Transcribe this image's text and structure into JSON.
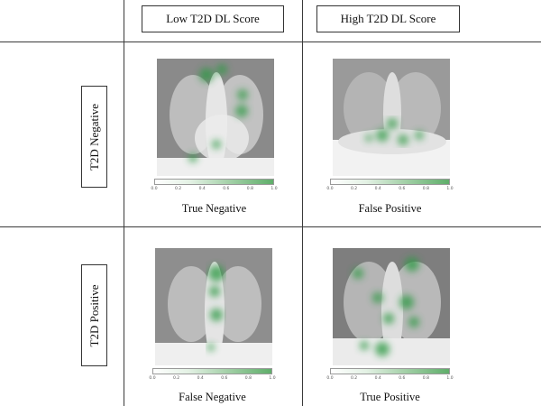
{
  "columns": [
    "Low T2D DL Score",
    "High T2D DL Score"
  ],
  "rows": [
    "T2D  Negative",
    "T2D  Positive"
  ],
  "colorbar_ticks": [
    "0.0",
    "0.2",
    "0.4",
    "0.6",
    "0.8",
    "1.0"
  ],
  "colors": {
    "heat_green": "#2f9a45",
    "grid_line": "#3a3a3a"
  },
  "cells": [
    {
      "caption": "True Negative"
    },
    {
      "caption": "False Positive"
    },
    {
      "caption": "False Negative"
    },
    {
      "caption": "True Positive"
    }
  ]
}
